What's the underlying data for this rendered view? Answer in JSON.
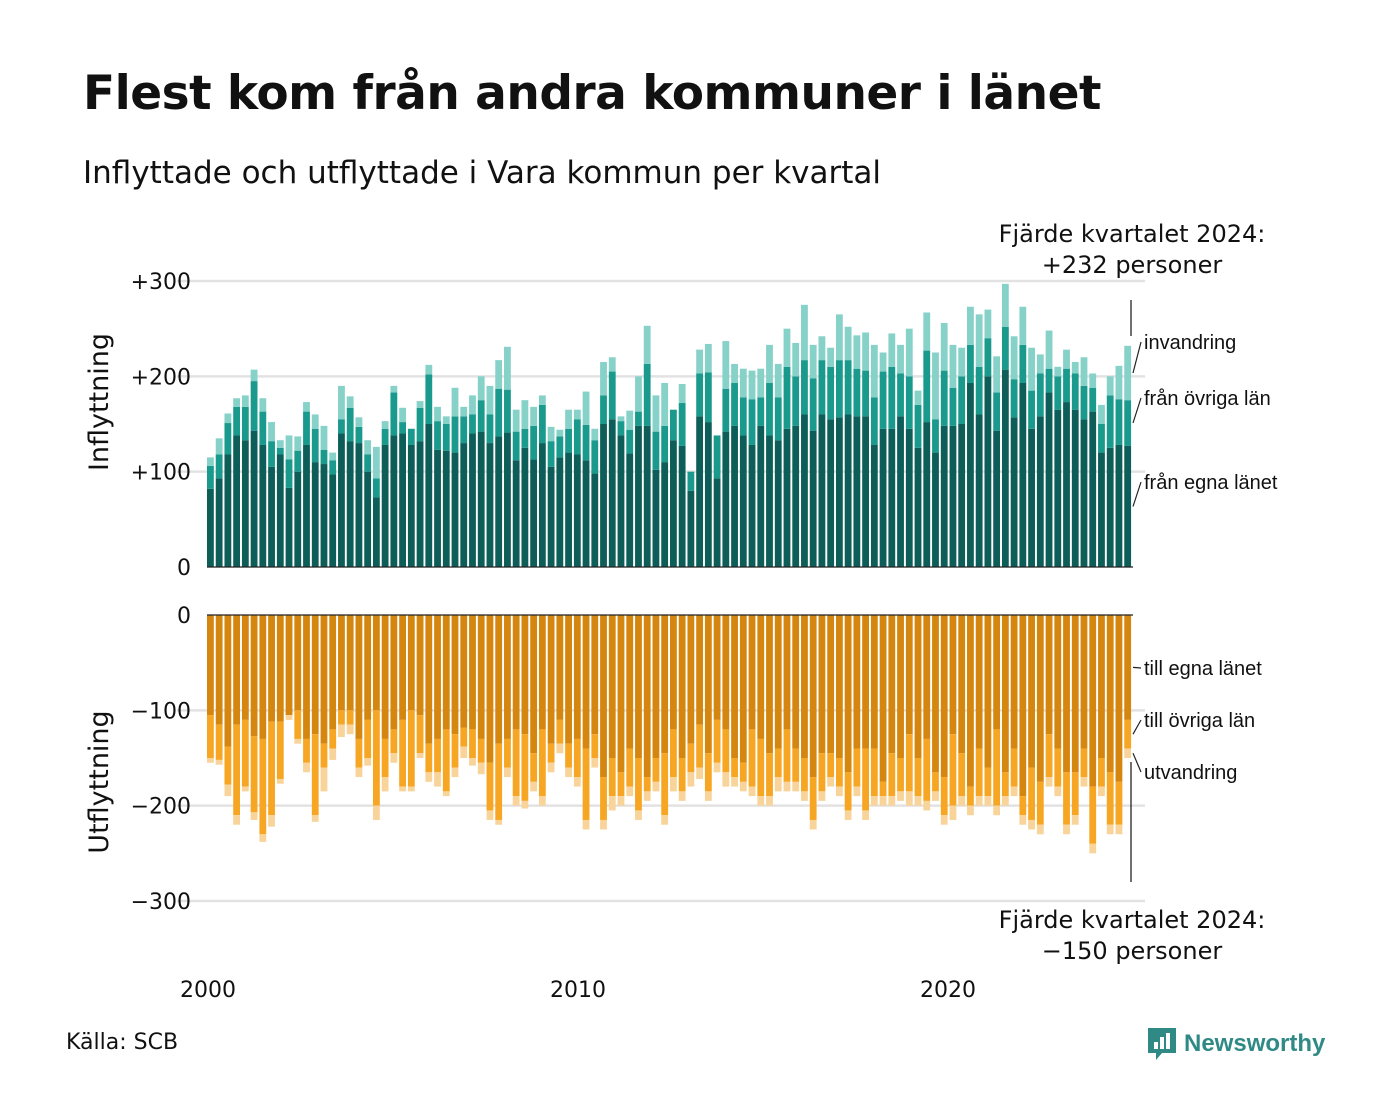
{
  "title": "Flest kom från andra kommuner i länet",
  "subtitle": "Inflyttade och utflyttade i Vara kommun per kvartal",
  "source": "Källa: SCB",
  "logo_text": "Newsworthy",
  "colors": {
    "in_egna": "#0d5e58",
    "in_ovriga": "#1a9a8c",
    "in_invandring": "#86d1c8",
    "out_egna": "#d4860e",
    "out_ovriga": "#f6a623",
    "out_utvandring": "#f8d49a",
    "grid": "#e2e2e2",
    "logo": "#2f8a86"
  },
  "chart_data": [
    {
      "panel": "Inflyttning",
      "type": "bar",
      "stacked": true,
      "ylabel": "Inflyttning",
      "ylim": [
        0,
        300
      ],
      "yticks": [
        {
          "value": 0,
          "label": "0"
        },
        {
          "value": 100,
          "label": "+100"
        },
        {
          "value": 200,
          "label": "+200"
        },
        {
          "value": 300,
          "label": "+300"
        }
      ],
      "xticks": [
        "2000",
        "2010",
        "2020"
      ],
      "annotation": [
        "Fjärde kvartalet 2024:",
        "+232 personer"
      ],
      "series": [
        {
          "name": "från egna länet",
          "color_key": "in_egna",
          "values": [
            82,
            93,
            118,
            138,
            133,
            143,
            128,
            105,
            118,
            83,
            100,
            128,
            110,
            108,
            97,
            140,
            132,
            130,
            100,
            73,
            128,
            138,
            140,
            128,
            132,
            150,
            123,
            122,
            120,
            130,
            140,
            142,
            130,
            137,
            141,
            112,
            125,
            113,
            130,
            105,
            115,
            120,
            118,
            112,
            98,
            150,
            155,
            138,
            119,
            148,
            148,
            102,
            110,
            133,
            127,
            80,
            158,
            152,
            93,
            142,
            148,
            138,
            128,
            148,
            138,
            133,
            145,
            148,
            160,
            143,
            160,
            155,
            157,
            160,
            158,
            158,
            128,
            145,
            145,
            158,
            145,
            125,
            152,
            120,
            148,
            148,
            150,
            193,
            160,
            200,
            143,
            207,
            157,
            193,
            145,
            158,
            183,
            165,
            173,
            165,
            155,
            163,
            120,
            125,
            128,
            127
          ]
        },
        {
          "name": "från övriga län",
          "color_key": "in_ovriga",
          "values": [
            24,
            25,
            33,
            30,
            35,
            52,
            35,
            27,
            7,
            30,
            22,
            35,
            35,
            15,
            15,
            15,
            35,
            17,
            18,
            20,
            17,
            45,
            12,
            17,
            35,
            52,
            30,
            28,
            38,
            28,
            20,
            33,
            30,
            50,
            45,
            30,
            20,
            35,
            40,
            27,
            22,
            25,
            37,
            37,
            35,
            30,
            50,
            15,
            25,
            15,
            65,
            40,
            38,
            32,
            45,
            20,
            45,
            52,
            45,
            45,
            45,
            40,
            48,
            30,
            55,
            45,
            65,
            52,
            57,
            55,
            57,
            55,
            60,
            57,
            50,
            48,
            50,
            60,
            65,
            45,
            55,
            45,
            75,
            35,
            58,
            40,
            50,
            40,
            50,
            40,
            40,
            45,
            40,
            40,
            40,
            45,
            25,
            35,
            35,
            38,
            35,
            25,
            30,
            55,
            48,
            48
          ]
        },
        {
          "name": "invandring",
          "color_key": "in_invandring",
          "values": [
            9,
            17,
            10,
            9,
            12,
            12,
            14,
            20,
            8,
            25,
            15,
            10,
            15,
            25,
            8,
            35,
            12,
            10,
            15,
            33,
            8,
            7,
            15,
            0,
            7,
            10,
            15,
            8,
            30,
            10,
            20,
            25,
            30,
            30,
            45,
            23,
            30,
            20,
            10,
            15,
            7,
            20,
            10,
            35,
            12,
            35,
            15,
            5,
            20,
            37,
            40,
            38,
            45,
            0,
            20,
            0,
            25,
            30,
            0,
            50,
            20,
            30,
            30,
            30,
            40,
            35,
            40,
            35,
            58,
            35,
            25,
            20,
            48,
            35,
            35,
            40,
            55,
            20,
            35,
            30,
            50,
            15,
            40,
            70,
            50,
            45,
            30,
            40,
            55,
            30,
            38,
            45,
            45,
            40,
            45,
            20,
            40,
            10,
            20,
            12,
            30,
            15,
            20,
            20,
            35,
            57
          ]
        }
      ]
    },
    {
      "panel": "Utflyttning",
      "type": "bar",
      "stacked": true,
      "ylabel": "Utflyttning",
      "ylim": [
        -300,
        0
      ],
      "yticks": [
        {
          "value": 0,
          "label": "0"
        },
        {
          "value": -100,
          "label": "−100"
        },
        {
          "value": -200,
          "label": "−200"
        },
        {
          "value": -300,
          "label": "−300"
        }
      ],
      "xticks": [
        "2000",
        "2010",
        "2020"
      ],
      "annotation": [
        "Fjärde kvartalet 2024:",
        "−150 personer"
      ],
      "series": [
        {
          "name": "till egna länet",
          "color_key": "out_egna",
          "values": [
            -105,
            -115,
            -138,
            -115,
            -110,
            -127,
            -130,
            -112,
            -112,
            -105,
            -100,
            -130,
            -125,
            -135,
            -120,
            -100,
            -100,
            -130,
            -110,
            -100,
            -130,
            -120,
            -110,
            -100,
            -105,
            -135,
            -130,
            -120,
            -125,
            -118,
            -120,
            -130,
            -155,
            -135,
            -130,
            -120,
            -125,
            -145,
            -120,
            -135,
            -110,
            -135,
            -130,
            -140,
            -125,
            -170,
            -150,
            -165,
            -140,
            -150,
            -170,
            -150,
            -145,
            -120,
            -150,
            -135,
            -115,
            -145,
            -110,
            -120,
            -150,
            -155,
            -120,
            -130,
            -145,
            -140,
            -120,
            -140,
            -150,
            -170,
            -145,
            -145,
            -150,
            -165,
            -140,
            -140,
            -140,
            -175,
            -145,
            -150,
            -125,
            -150,
            -130,
            -165,
            -170,
            -125,
            -145,
            -180,
            -140,
            -160,
            -120,
            -165,
            -140,
            -190,
            -160,
            -175,
            -125,
            -140,
            -165,
            -165,
            -140,
            -180,
            -150,
            -165,
            -175,
            -110
          ]
        },
        {
          "name": "till övriga län",
          "color_key": "out_ovriga",
          "values": [
            -45,
            -37,
            -40,
            -95,
            -70,
            -80,
            -100,
            -98,
            -60,
            0,
            -30,
            -25,
            -85,
            -25,
            -20,
            -15,
            -15,
            -30,
            -40,
            -100,
            -40,
            -25,
            -70,
            -80,
            -40,
            -30,
            -35,
            -65,
            -35,
            -20,
            -30,
            -25,
            -50,
            -80,
            -30,
            -70,
            -70,
            -30,
            -70,
            -20,
            -25,
            -25,
            -40,
            -75,
            -25,
            -45,
            -40,
            -25,
            -40,
            -55,
            -15,
            -25,
            -65,
            -50,
            -35,
            -30,
            -45,
            -40,
            -45,
            -45,
            -20,
            -20,
            -60,
            -60,
            -45,
            -30,
            -55,
            -35,
            -35,
            -45,
            -40,
            -25,
            -30,
            -40,
            -40,
            -65,
            -50,
            -15,
            -45,
            -35,
            -60,
            -40,
            -65,
            -20,
            -40,
            -75,
            -45,
            -20,
            -50,
            -30,
            -80,
            -25,
            -40,
            -20,
            -55,
            -45,
            -45,
            -40,
            -55,
            -45,
            -30,
            -60,
            -30,
            -55,
            -45,
            -30
          ]
        },
        {
          "name": "utvandring",
          "color_key": "out_utvandring",
          "values": [
            -5,
            -5,
            -12,
            -10,
            -5,
            -8,
            -8,
            -12,
            -5,
            -5,
            -5,
            -10,
            -7,
            -25,
            -12,
            -13,
            -10,
            -10,
            -8,
            -15,
            -15,
            -10,
            -5,
            -5,
            -5,
            -10,
            -15,
            -5,
            -10,
            -12,
            -8,
            -12,
            -10,
            -5,
            -10,
            -10,
            -8,
            -10,
            -10,
            -10,
            -10,
            -10,
            -10,
            -10,
            -10,
            -10,
            -15,
            -10,
            -10,
            -10,
            -10,
            -10,
            -10,
            -15,
            -10,
            -15,
            -12,
            -10,
            -10,
            -15,
            -10,
            -10,
            -10,
            -10,
            -10,
            -15,
            -10,
            -10,
            -10,
            -10,
            -10,
            -10,
            -10,
            -10,
            -10,
            -10,
            -10,
            -10,
            -10,
            -10,
            -15,
            -10,
            -10,
            -10,
            -10,
            -15,
            -10,
            -10,
            -10,
            -10,
            -10,
            -10,
            -10,
            -10,
            -10,
            -10,
            -10,
            -10,
            -10,
            -10,
            -10,
            -10,
            -10,
            -10,
            -10,
            -10
          ]
        }
      ]
    }
  ]
}
